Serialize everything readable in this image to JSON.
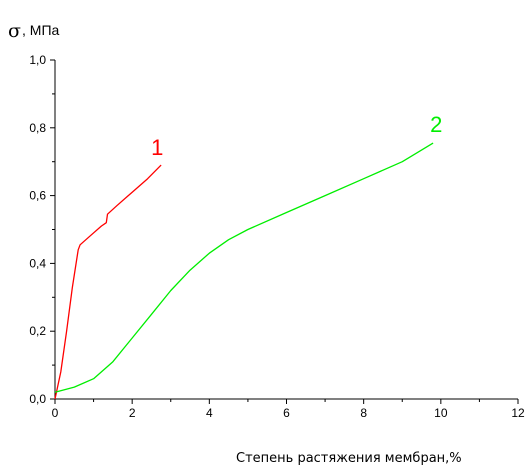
{
  "chart_data": {
    "type": "line",
    "ylabel_symbol": "σ",
    "ylabel_unit": ", МПа",
    "xlabel": "Степень растяжения мембран,%",
    "xlim": [
      0,
      12
    ],
    "ylim": [
      0,
      1.0
    ],
    "x_ticks": [
      0,
      2,
      4,
      6,
      8,
      10,
      12
    ],
    "y_ticks": [
      0.0,
      0.2,
      0.4,
      0.6,
      0.8,
      1.0
    ],
    "x_tick_labels": [
      "0",
      "2",
      "4",
      "6",
      "8",
      "10",
      "12"
    ],
    "y_tick_labels": [
      "0,0",
      "0,2",
      "0,4",
      "0,6",
      "0,8",
      "1,0"
    ],
    "grid": false,
    "legend": "none",
    "series": [
      {
        "label": "1",
        "color": "#ff0000",
        "points": [
          [
            0.0,
            0.0
          ],
          [
            0.15,
            0.08
          ],
          [
            0.3,
            0.2
          ],
          [
            0.45,
            0.33
          ],
          [
            0.6,
            0.44
          ],
          [
            0.65,
            0.455
          ],
          [
            0.9,
            0.48
          ],
          [
            1.2,
            0.51
          ],
          [
            1.33,
            0.52
          ],
          [
            1.36,
            0.545
          ],
          [
            1.6,
            0.57
          ],
          [
            2.0,
            0.61
          ],
          [
            2.4,
            0.65
          ],
          [
            2.75,
            0.69
          ]
        ]
      },
      {
        "label": "2",
        "color": "#00ee00",
        "points": [
          [
            0.0,
            0.02
          ],
          [
            0.5,
            0.035
          ],
          [
            1.0,
            0.06
          ],
          [
            1.5,
            0.11
          ],
          [
            2.0,
            0.18
          ],
          [
            2.5,
            0.25
          ],
          [
            3.0,
            0.32
          ],
          [
            3.5,
            0.38
          ],
          [
            4.0,
            0.43
          ],
          [
            4.5,
            0.47
          ],
          [
            5.0,
            0.5
          ],
          [
            6.0,
            0.55
          ],
          [
            7.0,
            0.6
          ],
          [
            8.0,
            0.65
          ],
          [
            9.0,
            0.7
          ],
          [
            9.8,
            0.755
          ]
        ]
      }
    ]
  }
}
